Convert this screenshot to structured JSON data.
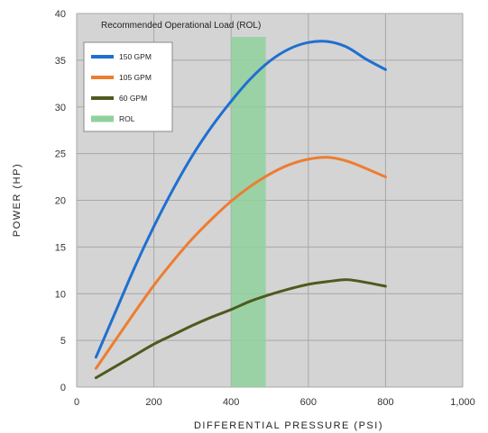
{
  "chart_data": {
    "type": "line",
    "xlabel": "DIFFERENTIAL PRESSURE (PSI)",
    "ylabel": "POWER (HP)",
    "xlim": [
      0,
      1000
    ],
    "ylim": [
      0,
      40
    ],
    "x_ticks": [
      0,
      200,
      400,
      600,
      800,
      1000
    ],
    "x_tick_labels": [
      "0",
      "200",
      "400",
      "600",
      "800",
      "1,000"
    ],
    "y_ticks": [
      0,
      5,
      10,
      15,
      20,
      25,
      30,
      35,
      40
    ],
    "y_tick_labels": [
      "0",
      "5",
      "10",
      "15",
      "20",
      "25",
      "30",
      "35",
      "40"
    ],
    "grid": true,
    "background_color": "#d4d4d4",
    "legend_position": "top-left",
    "annotation": "Recommended Operational Load (ROL)",
    "band": {
      "name": "ROL",
      "x_start": 400,
      "x_end": 490,
      "color": "#8fd19e"
    },
    "series": [
      {
        "name": "150 GPM",
        "color": "#1f6fd1",
        "x": [
          50,
          100,
          150,
          200,
          250,
          300,
          350,
          400,
          450,
          500,
          550,
          600,
          650,
          700,
          750,
          800
        ],
        "values": [
          3.2,
          8.0,
          12.8,
          17.2,
          21.2,
          24.8,
          27.9,
          30.6,
          33.0,
          34.9,
          36.2,
          36.9,
          37.0,
          36.4,
          35.1,
          34.0
        ]
      },
      {
        "name": "105 GPM",
        "color": "#ed7d31",
        "x": [
          50,
          100,
          150,
          200,
          250,
          300,
          350,
          400,
          450,
          500,
          550,
          600,
          650,
          700,
          750,
          800
        ],
        "values": [
          2.0,
          5.0,
          8.0,
          10.9,
          13.5,
          15.9,
          18.0,
          19.9,
          21.5,
          22.8,
          23.8,
          24.4,
          24.6,
          24.2,
          23.4,
          22.5
        ]
      },
      {
        "name": "60 GPM",
        "color": "#4d5a1e",
        "x": [
          50,
          100,
          150,
          200,
          250,
          300,
          350,
          400,
          450,
          500,
          550,
          600,
          650,
          700,
          750,
          800
        ],
        "values": [
          1.0,
          2.2,
          3.4,
          4.6,
          5.6,
          6.6,
          7.5,
          8.3,
          9.2,
          9.9,
          10.5,
          11.0,
          11.3,
          11.5,
          11.2,
          10.8
        ]
      }
    ]
  }
}
